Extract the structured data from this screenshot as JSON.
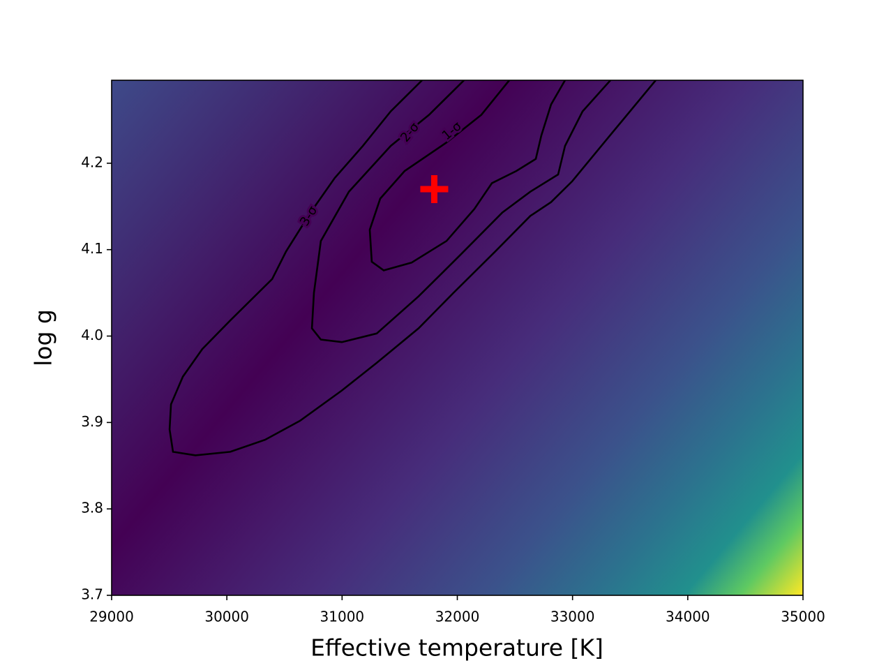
{
  "chart_data": {
    "type": "contour",
    "x_label": "Effective temperature [K]",
    "y_label": "log g",
    "xlim": [
      29000,
      35000
    ],
    "ylim": [
      3.7,
      4.296
    ],
    "xticks": [
      29000,
      30000,
      31000,
      32000,
      33000,
      34000,
      35000
    ],
    "yticks": [
      3.7,
      3.8,
      3.9,
      {
        "value": 4,
        "label": "4.0"
      },
      4.1,
      4.2
    ],
    "series": [
      {
        "name": "1-σ",
        "color": "#000000",
        "x": [
          32451,
          32209,
          31906,
          31543,
          31331,
          31240,
          31258,
          31361,
          31603,
          31906,
          32148,
          32300,
          32512,
          32681,
          32729,
          32814,
          32935
        ],
        "y": [
          4.296,
          4.256,
          4.224,
          4.191,
          4.159,
          4.123,
          4.086,
          4.076,
          4.085,
          4.11,
          4.147,
          4.177,
          4.191,
          4.205,
          4.232,
          4.268,
          4.296
        ]
      },
      {
        "name": "2-σ",
        "color": "#000000",
        "x": [
          32058,
          31755,
          31422,
          31059,
          30816,
          30756,
          30738,
          30816,
          30998,
          31301,
          31664,
          32027,
          32391,
          32633,
          32875,
          32935,
          33087,
          33329
        ],
        "y": [
          4.296,
          4.256,
          4.22,
          4.167,
          4.11,
          4.05,
          4.009,
          3.996,
          3.993,
          4.003,
          4.046,
          4.094,
          4.143,
          4.167,
          4.187,
          4.22,
          4.26,
          4.296
        ]
      },
      {
        "name": "3-σ",
        "color": "#000000",
        "x": [
          31694,
          31422,
          31180,
          30937,
          30726,
          30514,
          30393,
          30029,
          29787,
          29618,
          29515,
          29503,
          29533,
          29727,
          30029,
          30332,
          30635,
          30998,
          31301,
          31664,
          31967,
          32330,
          32633,
          32814,
          32996,
          33299,
          33722
        ],
        "y": [
          4.296,
          4.26,
          4.22,
          4.183,
          4.143,
          4.098,
          4.066,
          4.018,
          3.985,
          3.953,
          3.921,
          3.892,
          3.866,
          3.862,
          3.866,
          3.88,
          3.902,
          3.937,
          3.969,
          4.009,
          4.05,
          4.098,
          4.139,
          4.155,
          4.179,
          4.228,
          4.296
        ]
      }
    ],
    "best_fit": {
      "x": 31800,
      "y": 4.17,
      "color": "#ff0000"
    }
  }
}
